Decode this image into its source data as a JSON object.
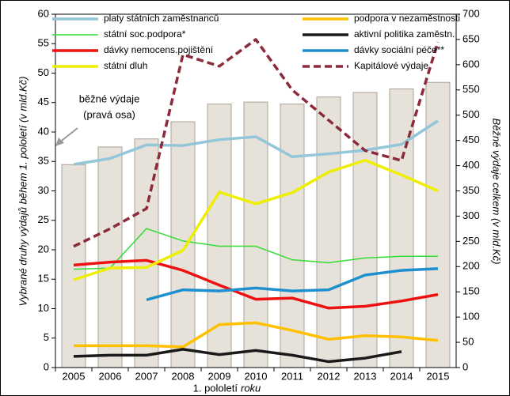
{
  "chart_data": {
    "type": "bar-line",
    "y_label": "Vybrané druhy výdajů  během  1. pololetí (v mld.Kč)",
    "y2_label": "Běžné výdaje celkem (v mld.Kč)",
    "x_label": "1. pololetí",
    "x_label_italic": "roku",
    "annotation": [
      "běžné výdaje",
      "(pravá osa)"
    ],
    "categories": [
      "2005",
      "2006",
      "2007",
      "2008",
      "2009",
      "2010",
      "2011",
      "2012",
      "2013",
      "2014",
      "2015"
    ],
    "ylim": [
      0,
      60
    ],
    "yticks": [
      0,
      5,
      10,
      15,
      20,
      25,
      30,
      35,
      40,
      45,
      50,
      55,
      60
    ],
    "y2lim": [
      0,
      700
    ],
    "y2ticks": [
      0,
      50,
      100,
      150,
      200,
      250,
      300,
      350,
      400,
      450,
      500,
      550,
      600,
      650,
      700
    ],
    "bars": {
      "axis": "y2",
      "color": "#e6e2da",
      "values": [
        402,
        437,
        453,
        487,
        522,
        526,
        522,
        536,
        545,
        552,
        565
      ]
    },
    "series": [
      {
        "name": "platy státních zaměstnanců",
        "color": "#93c6d9",
        "width": 3.5,
        "values": [
          34.5,
          35.5,
          37.8,
          37.7,
          38.7,
          39.2,
          35.8,
          36.3,
          36.9,
          37.9,
          41.9
        ]
      },
      {
        "name": "podpora v nezaměstnosti",
        "color": "#ffc000",
        "width": 3.5,
        "values": [
          3.7,
          3.7,
          3.7,
          3.5,
          7.3,
          7.6,
          6.3,
          4.8,
          5.4,
          5.2,
          4.6
        ]
      },
      {
        "name": "státní soc.podpora*",
        "color": "#33dd33",
        "width": 1.5,
        "values": [
          16.7,
          16.9,
          23.6,
          21.5,
          20.6,
          20.6,
          18.3,
          17.8,
          18.6,
          18.9,
          18.9
        ]
      },
      {
        "name": "aktivní politika zaměstn.",
        "color": "#1a1a1a",
        "width": 3.5,
        "values": [
          1.9,
          2.1,
          2.1,
          3.1,
          2.2,
          2.9,
          2.1,
          1.0,
          1.6,
          2.7,
          null
        ]
      },
      {
        "name": "dávky nemocens.pojištění",
        "color": "#ee1111",
        "width": 3.5,
        "values": [
          17.4,
          17.9,
          18.2,
          16.5,
          14.0,
          11.6,
          11.8,
          10.1,
          10.4,
          11.3,
          12.4
        ]
      },
      {
        "name": "dávky sociální péče**",
        "color": "#1e8fcf",
        "width": 3.5,
        "values": [
          null,
          null,
          11.5,
          13.2,
          13.0,
          13.5,
          13.0,
          13.2,
          15.7,
          16.5,
          16.8
        ]
      },
      {
        "name": "státní dluh",
        "color": "#eeee00",
        "width": 3.5,
        "values": [
          14.9,
          16.9,
          17.0,
          19.9,
          29.8,
          27.8,
          29.7,
          33.2,
          35.2,
          32.7,
          30.0
        ]
      },
      {
        "name": "Kapitálové výdaje",
        "color": "#8b2b3a",
        "width": 3.5,
        "dashed": true,
        "axis": "y2",
        "values": [
          240,
          275,
          315,
          620,
          597,
          650,
          550,
          490,
          430,
          410,
          645
        ]
      }
    ]
  }
}
